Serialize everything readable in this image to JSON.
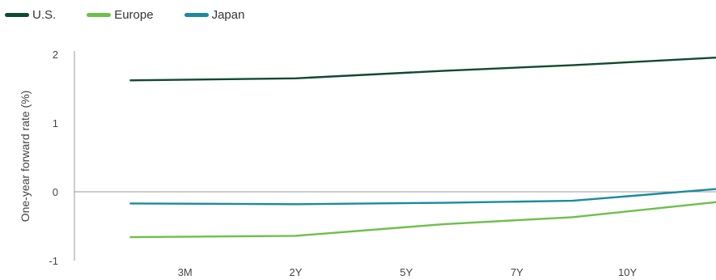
{
  "chart_data": {
    "type": "line",
    "categories": [
      "3M",
      "2Y",
      "5Y",
      "7Y",
      "10Y"
    ],
    "x_points": [
      0,
      1.5,
      2.85,
      4.0,
      5.3
    ],
    "tick_positions": [
      0.5,
      1.5,
      2.5,
      3.5,
      4.5
    ],
    "xlim": [
      -0.5,
      5.3
    ],
    "ylabel": "One-year forward rate (%)",
    "ylim": [
      -1,
      2
    ],
    "yticks": [
      "2",
      "1",
      "0",
      "-1"
    ],
    "ytick_values": [
      2,
      1,
      0,
      -1
    ],
    "legend_position": "top-left",
    "series": [
      {
        "name": "U.S.",
        "color": "#0f4a2e",
        "values": [
          1.62,
          1.65,
          1.76,
          1.84,
          1.95
        ]
      },
      {
        "name": "Europe",
        "color": "#6cc04a",
        "values": [
          -0.66,
          -0.64,
          -0.47,
          -0.37,
          -0.15
        ]
      },
      {
        "name": "Japan",
        "color": "#1a8aa0",
        "values": [
          -0.17,
          -0.18,
          -0.16,
          -0.13,
          0.04
        ]
      }
    ]
  }
}
